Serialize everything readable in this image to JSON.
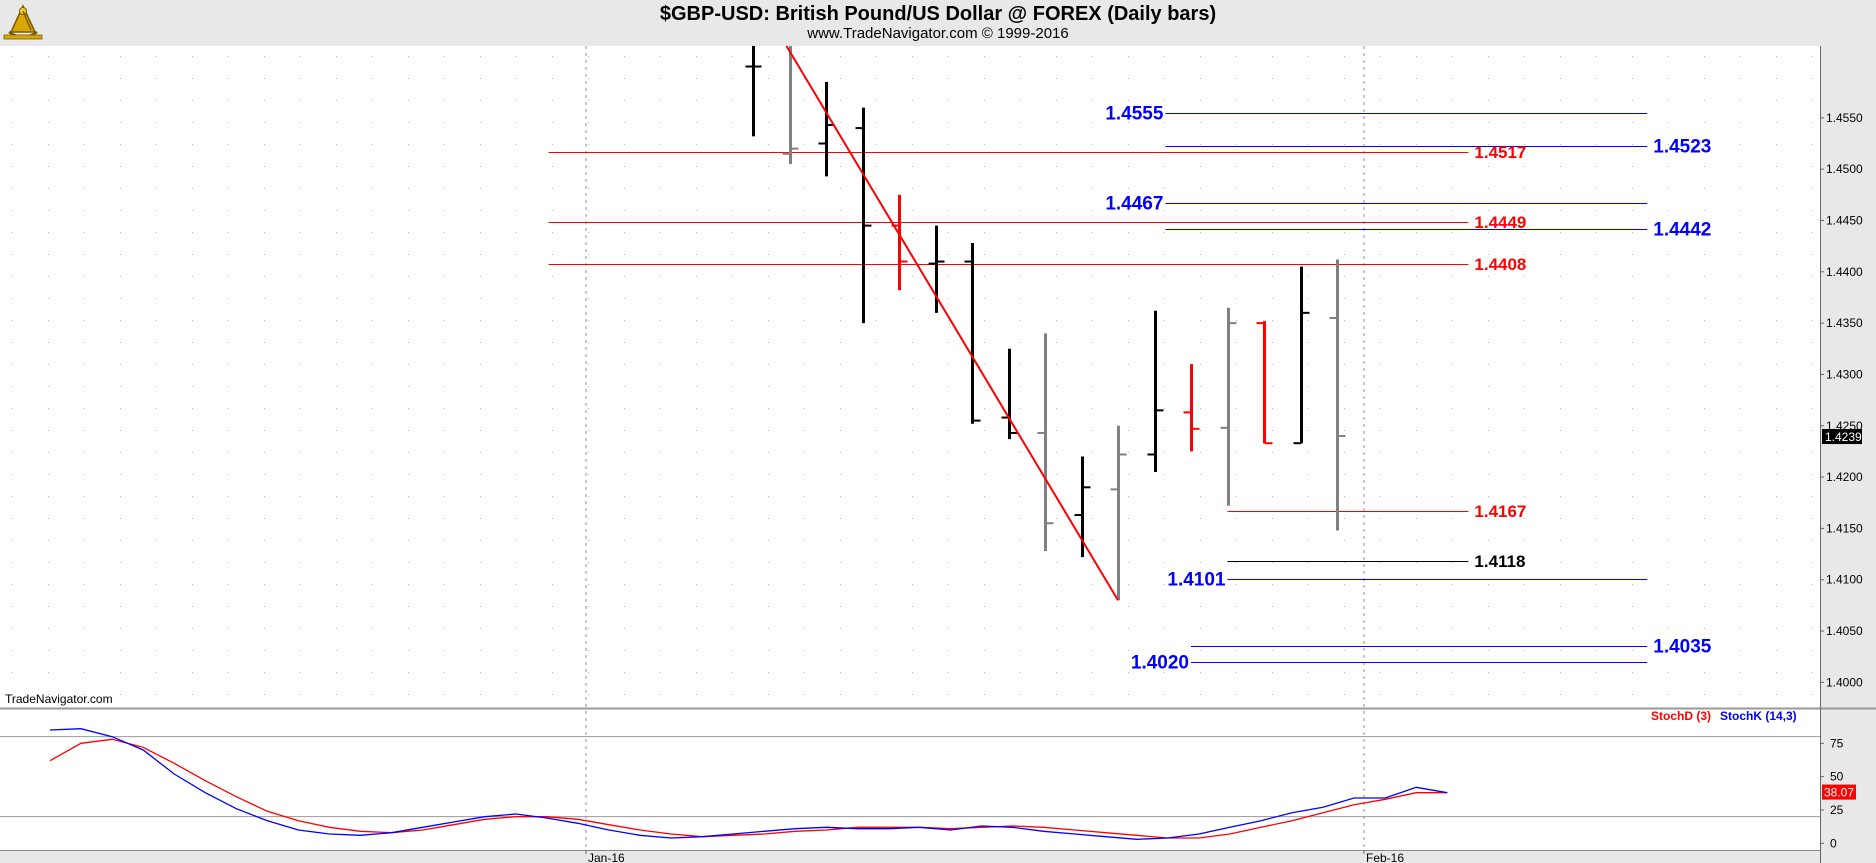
{
  "header": {
    "title": "$GBP-USD:  British Pound/US Dollar @ FOREX  (Daily bars)",
    "subtitle": "www.TradeNavigator.com © 1999-2016",
    "watermark": "TradeNavigator.com"
  },
  "colors": {
    "up": "#000000",
    "down": "#808080",
    "highlight": "#ff0000",
    "blue": "#0000ff",
    "red": "#ff0000"
  },
  "chart_data": [
    {
      "type": "bar",
      "subtype": "ohlc",
      "ylim": [
        1.3975,
        1.462
      ],
      "y_ticks": [
        "1.4550",
        "1.4500",
        "1.4450",
        "1.4400",
        "1.4350",
        "1.4300",
        "1.4250",
        "1.4200",
        "1.4150",
        "1.4100",
        "1.4050",
        "1.4000"
      ],
      "x_ticks": [
        "Jan-16",
        "Feb-16"
      ],
      "last_price": "1.4239",
      "bars": [
        {
          "o": 1.46,
          "h": 1.462,
          "l": 1.4532,
          "c": 1.46,
          "color": "up"
        },
        {
          "o": 1.4515,
          "h": 1.462,
          "l": 1.4505,
          "c": 1.452,
          "color": "down"
        },
        {
          "o": 1.4525,
          "h": 1.4585,
          "l": 1.4493,
          "c": 1.4543,
          "color": "up"
        },
        {
          "o": 1.454,
          "h": 1.456,
          "l": 1.435,
          "c": 1.4445,
          "color": "up"
        },
        {
          "o": 1.4445,
          "h": 1.4475,
          "l": 1.4382,
          "c": 1.441,
          "color": "highlight"
        },
        {
          "o": 1.4408,
          "h": 1.4445,
          "l": 1.436,
          "c": 1.441,
          "color": "up"
        },
        {
          "o": 1.441,
          "h": 1.4428,
          "l": 1.4252,
          "c": 1.4255,
          "color": "up"
        },
        {
          "o": 1.4258,
          "h": 1.4325,
          "l": 1.4237,
          "c": 1.4243,
          "color": "up"
        },
        {
          "o": 1.4243,
          "h": 1.434,
          "l": 1.4128,
          "c": 1.4155,
          "color": "down"
        },
        {
          "o": 1.4163,
          "h": 1.422,
          "l": 1.4122,
          "c": 1.419,
          "color": "up"
        },
        {
          "o": 1.4188,
          "h": 1.425,
          "l": 1.408,
          "c": 1.4222,
          "color": "down"
        },
        {
          "o": 1.4222,
          "h": 1.4362,
          "l": 1.4205,
          "c": 1.4265,
          "color": "up"
        },
        {
          "o": 1.4263,
          "h": 1.431,
          "l": 1.4225,
          "c": 1.4247,
          "color": "highlight"
        },
        {
          "o": 1.4248,
          "h": 1.4365,
          "l": 1.4172,
          "c": 1.435,
          "color": "down"
        },
        {
          "o": 1.435,
          "h": 1.4352,
          "l": 1.4233,
          "c": 1.4233,
          "color": "highlight"
        },
        {
          "o": 1.4233,
          "h": 1.4405,
          "l": 1.4233,
          "c": 1.436,
          "color": "up"
        },
        {
          "o": 1.4355,
          "h": 1.4412,
          "l": 1.4148,
          "c": 1.424,
          "color": "down"
        }
      ],
      "annotations": [
        {
          "label": "1.4555",
          "value": 1.4555,
          "color": "blue",
          "start": 11.3,
          "end": 24.5,
          "label_side": "left"
        },
        {
          "label": "1.4523",
          "value": 1.4523,
          "color": "blue",
          "start": 11.3,
          "end": 24.5,
          "label_side": "right"
        },
        {
          "label": "1.4517",
          "value": 1.4517,
          "color": "red",
          "start": -5.6,
          "end": 19.6,
          "label_side": "right"
        },
        {
          "label": "1.4467",
          "value": 1.4467,
          "color": "blue",
          "start": 11.3,
          "end": 24.5,
          "label_side": "left"
        },
        {
          "label": "1.4449",
          "value": 1.4449,
          "color": "red",
          "start": -5.6,
          "end": 19.6,
          "label_side": "right"
        },
        {
          "label": "1.4442",
          "value": 1.4442,
          "color": "blue",
          "start": 11.3,
          "end": 24.5,
          "label_side": "right"
        },
        {
          "label": "1.4408",
          "value": 1.4408,
          "color": "red",
          "start": -5.6,
          "end": 19.6,
          "label_side": "right"
        },
        {
          "label": "1.4167",
          "value": 1.4167,
          "color": "red",
          "start": 13.0,
          "end": 19.6,
          "label_side": "right"
        },
        {
          "label": "1.4118",
          "value": 1.4118,
          "color": "up",
          "start": 13.0,
          "end": 19.6,
          "label_side": "right"
        },
        {
          "label": "1.4101",
          "value": 1.4101,
          "color": "blue",
          "start": 13.0,
          "end": 24.5,
          "label_side": "left"
        },
        {
          "label": "1.4035",
          "value": 1.4035,
          "color": "blue",
          "start": 12.0,
          "end": 24.5,
          "label_side": "right"
        },
        {
          "label": "1.4020",
          "value": 1.402,
          "color": "blue",
          "start": 12.0,
          "end": 24.5,
          "label_side": "left"
        }
      ],
      "trendline": {
        "from": {
          "bar": 1,
          "value": 1.462
        },
        "to": {
          "bar": 10,
          "value": 1.408
        },
        "color": "red"
      }
    },
    {
      "type": "line",
      "ylim": [
        -5,
        100
      ],
      "y_ticks": [
        "75",
        "50",
        "25",
        "0"
      ],
      "reference_lines": [
        80,
        20
      ],
      "last_value": "38.07",
      "series": [
        {
          "name": "StochD (3)",
          "color": "red",
          "values": [
            62,
            75,
            78,
            72,
            60,
            47,
            35,
            24,
            17,
            12,
            9,
            8,
            10,
            14,
            18,
            20,
            20,
            18,
            14,
            10,
            7,
            5,
            6,
            7,
            9,
            10,
            12,
            12,
            12,
            11,
            12,
            13,
            12,
            10,
            8,
            6,
            4,
            4,
            7,
            12,
            17,
            23,
            29,
            33,
            38,
            38
          ]
        },
        {
          "name": "StochK (14,3)",
          "color": "blue",
          "values": [
            85,
            86,
            80,
            70,
            52,
            38,
            26,
            17,
            10,
            7,
            6,
            8,
            12,
            16,
            20,
            22,
            19,
            15,
            10,
            6,
            4,
            5,
            7,
            9,
            11,
            12,
            11,
            11,
            12,
            10,
            13,
            12,
            9,
            7,
            5,
            3,
            4,
            7,
            12,
            17,
            23,
            27,
            34,
            34,
            42,
            38
          ]
        }
      ]
    }
  ]
}
